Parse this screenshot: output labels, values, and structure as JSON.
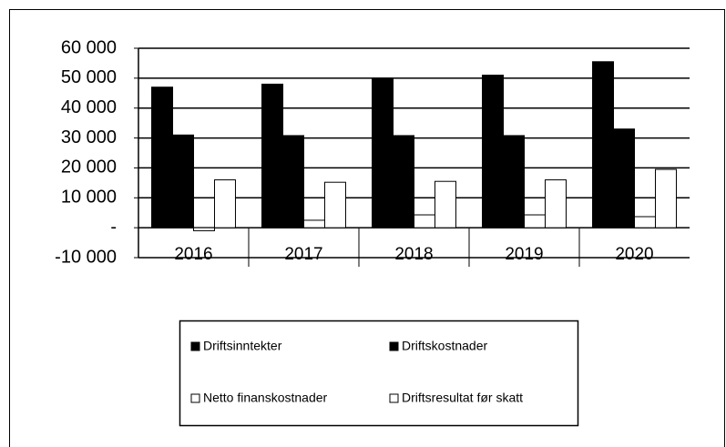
{
  "chart_data": {
    "type": "bar",
    "categories": [
      "2016",
      "2017",
      "2018",
      "2019",
      "2020"
    ],
    "series": [
      {
        "name": "Driftsinntekter",
        "color": "#000000",
        "values": [
          47000,
          48000,
          50000,
          51000,
          55500
        ]
      },
      {
        "name": "Driftskostnader",
        "color": "#000000",
        "values": [
          31000,
          30800,
          30800,
          30800,
          33000
        ]
      },
      {
        "name": "Netto finanskostnader",
        "color": "#ffffff",
        "values": [
          -1000,
          2500,
          4300,
          4300,
          3700
        ]
      },
      {
        "name": "Driftsresultat før skatt",
        "color": "#ffffff",
        "values": [
          16000,
          15200,
          15500,
          16000,
          19500
        ]
      }
    ],
    "ylim": [
      -10000,
      60000
    ],
    "yticks": [
      {
        "value": -10000,
        "label": "-10 000"
      },
      {
        "value": 0,
        "label": "-"
      },
      {
        "value": 10000,
        "label": "10 000"
      },
      {
        "value": 20000,
        "label": "20 000"
      },
      {
        "value": 30000,
        "label": "30 000"
      },
      {
        "value": 40000,
        "label": "40 000"
      },
      {
        "value": 50000,
        "label": "50 000"
      },
      {
        "value": 60000,
        "label": "60 000"
      }
    ],
    "grid": true,
    "legend": "bottom"
  }
}
